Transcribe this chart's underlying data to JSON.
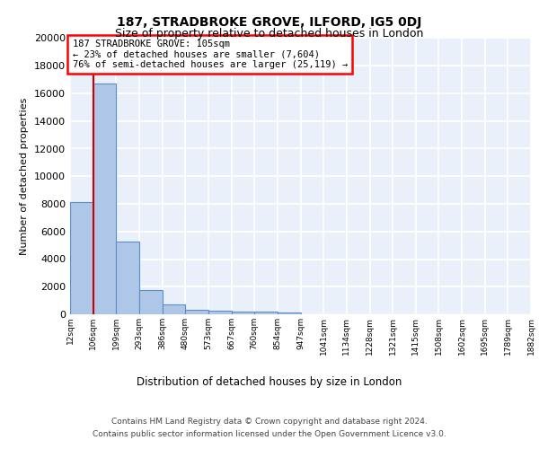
{
  "title": "187, STRADBROKE GROVE, ILFORD, IG5 0DJ",
  "subtitle": "Size of property relative to detached houses in London",
  "xlabel": "Distribution of detached houses by size in London",
  "ylabel": "Number of detached properties",
  "bins": [
    12,
    106,
    199,
    293,
    386,
    480,
    573,
    667,
    760,
    854,
    947,
    1041,
    1134,
    1228,
    1321,
    1415,
    1508,
    1602,
    1695,
    1789,
    1882
  ],
  "counts": [
    8100,
    16700,
    5300,
    1750,
    700,
    300,
    230,
    200,
    170,
    150,
    0,
    0,
    0,
    0,
    0,
    0,
    0,
    0,
    0,
    0
  ],
  "bar_color": "#aec6e8",
  "bar_edge_color": "#5b8fc9",
  "red_line_x": 105,
  "annotation_text": "187 STRADBROKE GROVE: 105sqm\n← 23% of detached houses are smaller (7,604)\n76% of semi-detached houses are larger (25,119) →",
  "annotation_box_color": "white",
  "annotation_box_edge_color": "red",
  "red_line_color": "#cc0000",
  "ylim": [
    0,
    20000
  ],
  "yticks": [
    0,
    2000,
    4000,
    6000,
    8000,
    10000,
    12000,
    14000,
    16000,
    18000,
    20000
  ],
  "footer1": "Contains HM Land Registry data © Crown copyright and database right 2024.",
  "footer2": "Contains public sector information licensed under the Open Government Licence v3.0.",
  "bg_color": "#eaf0fa",
  "grid_color": "white",
  "title_fontsize": 10,
  "subtitle_fontsize": 9,
  "annotation_fontsize": 7.5,
  "ylabel_fontsize": 8,
  "xlabel_fontsize": 8.5,
  "tick_label_fontsize": 6.5,
  "footer_fontsize": 6.5,
  "tick_labels": [
    "12sqm",
    "106sqm",
    "199sqm",
    "293sqm",
    "386sqm",
    "480sqm",
    "573sqm",
    "667sqm",
    "760sqm",
    "854sqm",
    "947sqm",
    "1041sqm",
    "1134sqm",
    "1228sqm",
    "1321sqm",
    "1415sqm",
    "1508sqm",
    "1602sqm",
    "1695sqm",
    "1789sqm",
    "1882sqm"
  ]
}
